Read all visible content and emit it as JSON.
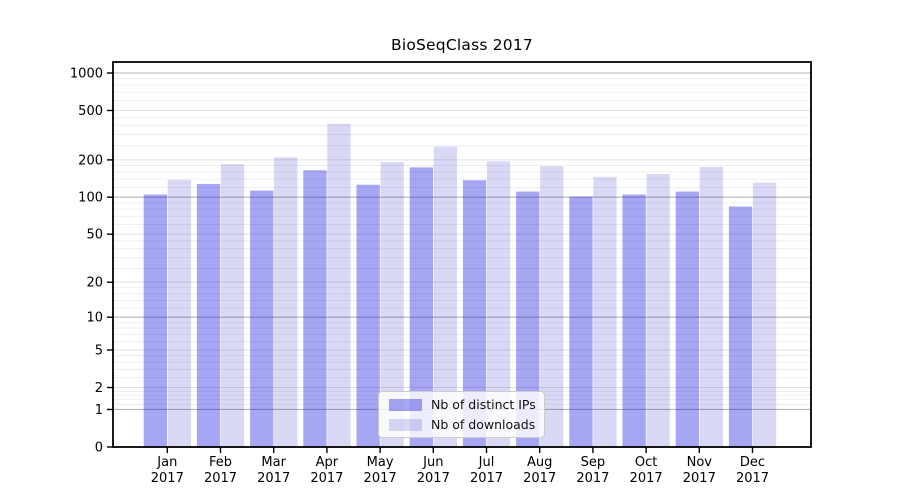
{
  "chart_data": {
    "type": "bar",
    "title": "BioSeqClass 2017",
    "year": "2017",
    "months": [
      "Jan",
      "Feb",
      "Mar",
      "Apr",
      "May",
      "Jun",
      "Jul",
      "Aug",
      "Sep",
      "Oct",
      "Nov",
      "Dec"
    ],
    "categories": [
      "Jan 2017",
      "Feb 2017",
      "Mar 2017",
      "Apr 2017",
      "May 2017",
      "Jun 2017",
      "Jul 2017",
      "Aug 2017",
      "Sep 2017",
      "Oct 2017",
      "Nov 2017",
      "Dec 2017"
    ],
    "series": [
      {
        "name": "Nb of distinct IPs",
        "color": "rgba(0,0,220,0.35)",
        "solid_color": "#a9a9f2",
        "values": [
          105,
          128,
          113,
          165,
          126,
          174,
          137,
          111,
          101,
          105,
          111,
          84
        ]
      },
      {
        "name": "Nb of downloads",
        "color": "rgba(0,0,190,0.15)",
        "solid_color": "#d9d9f6",
        "values": [
          138,
          185,
          210,
          390,
          192,
          256,
          195,
          178,
          146,
          154,
          176,
          131
        ]
      }
    ],
    "xlabel": "",
    "ylabel": "",
    "y_scale": "log1p",
    "y_ticks": [
      0,
      1,
      2,
      5,
      10,
      20,
      50,
      100,
      200,
      500,
      1000
    ],
    "y_major_decades": [
      1,
      10,
      100,
      1000
    ],
    "ylim": [
      0,
      1000
    ],
    "grid": true,
    "legend_position": "lower center",
    "colors": {
      "axis": "#000000",
      "tick_text": "#000000",
      "grid_major": "#b4b4b4",
      "grid_mid": "#e0e0e0",
      "grid_minor": "#ebebeb",
      "background": "#ffffff",
      "legend_border": "#cccccc"
    }
  }
}
